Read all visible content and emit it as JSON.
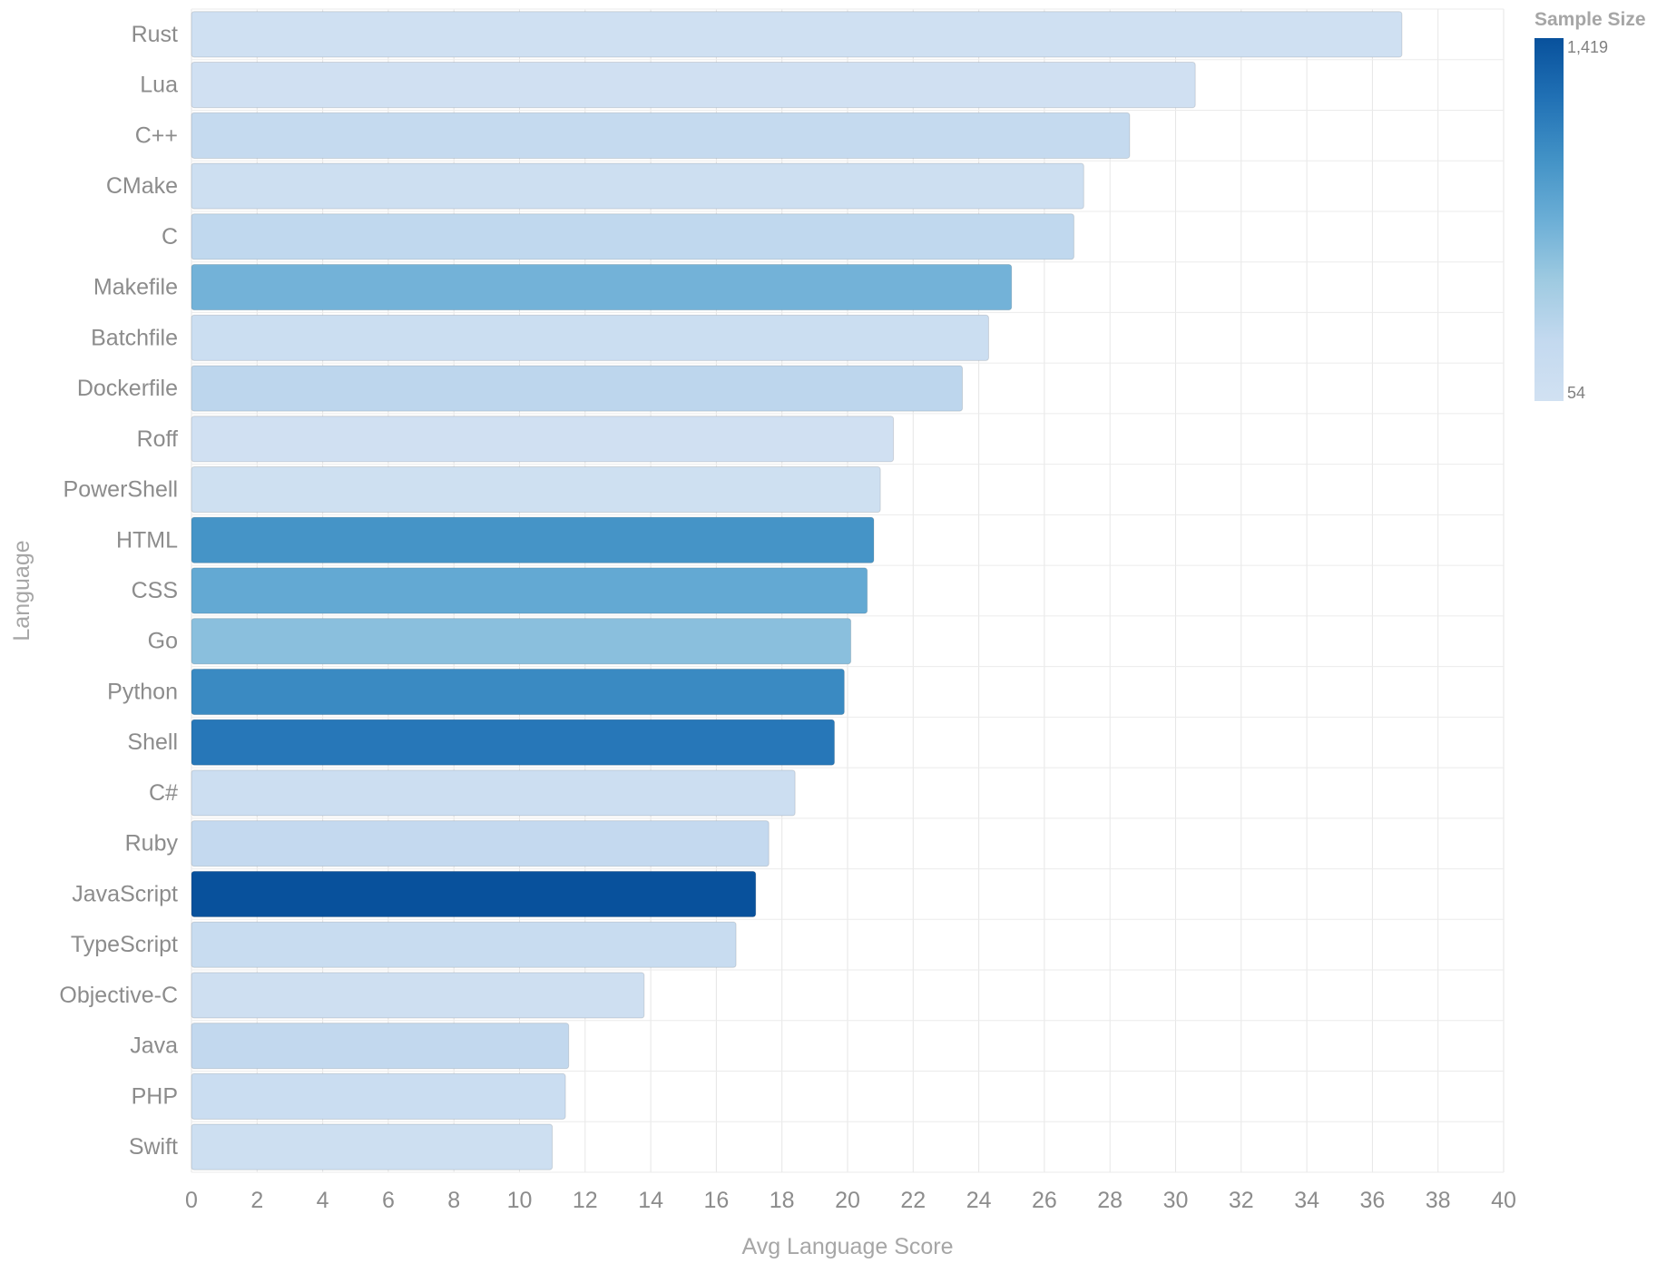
{
  "chart_data": {
    "type": "bar",
    "orientation": "horizontal",
    "xlabel": "Avg Language Score",
    "ylabel": "Language",
    "xlim": [
      0,
      40
    ],
    "x_ticks": [
      0,
      2,
      4,
      6,
      8,
      10,
      12,
      14,
      16,
      18,
      20,
      22,
      24,
      26,
      28,
      30,
      32,
      34,
      36,
      38,
      40
    ],
    "grid": true,
    "categories": [
      "Rust",
      "Lua",
      "C++",
      "CMake",
      "C",
      "Makefile",
      "Batchfile",
      "Dockerfile",
      "Roff",
      "PowerShell",
      "HTML",
      "CSS",
      "Go",
      "Python",
      "Shell",
      "C#",
      "Ruby",
      "JavaScript",
      "TypeScript",
      "Objective-C",
      "Java",
      "PHP",
      "Swift"
    ],
    "values": [
      36.9,
      30.6,
      28.6,
      27.2,
      26.9,
      25.0,
      24.3,
      23.5,
      21.4,
      21.0,
      20.8,
      20.6,
      20.1,
      19.9,
      19.6,
      18.4,
      17.6,
      17.2,
      16.6,
      13.8,
      11.5,
      11.4,
      11.0
    ],
    "color_values": [
      80,
      70,
      250,
      120,
      300,
      700,
      150,
      320,
      75,
      95,
      950,
      780,
      600,
      1020,
      1150,
      130,
      270,
      1419,
      200,
      110,
      290,
      160,
      125
    ],
    "color_scale": {
      "title": "Sample Size",
      "min": 54,
      "max": 1419,
      "min_label": "54",
      "max_label": "1,419",
      "colors": [
        "#d1e1f2",
        "#c3d9ef",
        "#9ecae1",
        "#6baed6",
        "#4292c6",
        "#2171b5",
        "#08519c"
      ]
    },
    "legend_position": "top-right"
  }
}
